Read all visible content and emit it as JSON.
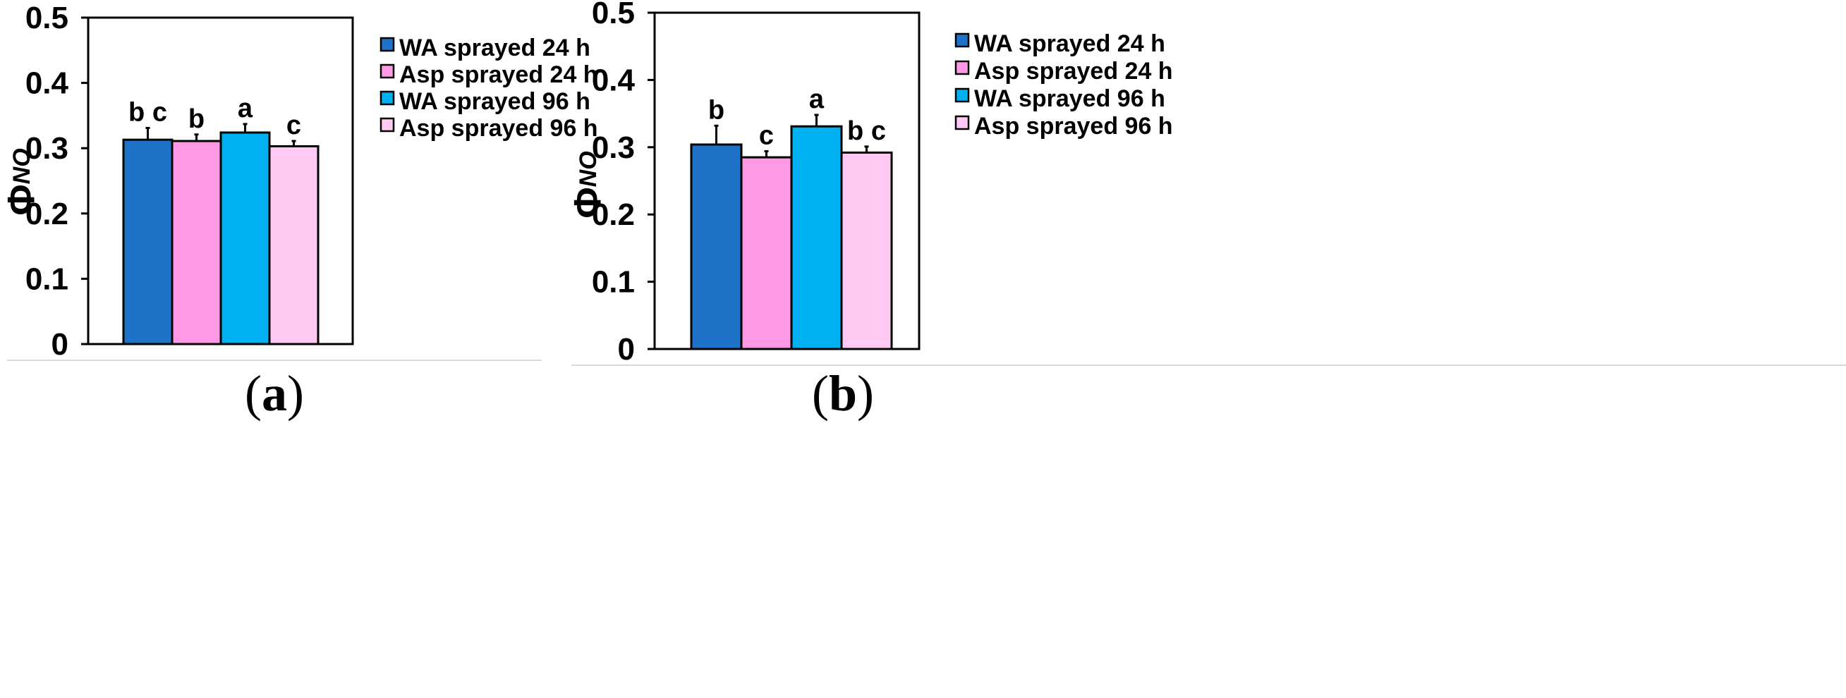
{
  "chart_data": [
    {
      "type": "bar",
      "panel_label": "a",
      "ylabel": "Φ",
      "ylabel_subscript": "NO",
      "ylim": [
        0,
        0.5
      ],
      "yticks": [
        "0",
        "0.1",
        "0.2",
        "0.3",
        "0.4",
        "0.5"
      ],
      "grid": false,
      "legend_position": "right",
      "series": [
        {
          "name": "WA sprayed 24 h",
          "value": 0.313,
          "error": 0.018,
          "letter": "b c",
          "color": "#1E73C8"
        },
        {
          "name": "Asp sprayed 24 h",
          "value": 0.311,
          "error": 0.01,
          "letter": "b",
          "color": "#FF99E6"
        },
        {
          "name": "WA sprayed 96 h",
          "value": 0.324,
          "error": 0.013,
          "letter": "a",
          "color": "#00B0F0"
        },
        {
          "name": "Asp sprayed 96 h",
          "value": 0.303,
          "error": 0.008,
          "letter": "c",
          "color": "#FFC9F3"
        }
      ]
    },
    {
      "type": "bar",
      "panel_label": "b",
      "ylabel": "Φ",
      "ylabel_subscript": "NO",
      "ylim": [
        0,
        0.5
      ],
      "yticks": [
        "0",
        "0.1",
        "0.2",
        "0.3",
        "0.4",
        "0.5"
      ],
      "grid": false,
      "legend_position": "right",
      "series": [
        {
          "name": "WA sprayed 24 h",
          "value": 0.304,
          "error": 0.028,
          "letter": "b",
          "color": "#1E73C8"
        },
        {
          "name": "Asp sprayed 24 h",
          "value": 0.285,
          "error": 0.009,
          "letter": "c",
          "color": "#FF99E6"
        },
        {
          "name": "WA sprayed 96 h",
          "value": 0.331,
          "error": 0.017,
          "letter": "a",
          "color": "#00B0F0"
        },
        {
          "name": "Asp sprayed 96 h",
          "value": 0.292,
          "error": 0.009,
          "letter": "b c",
          "color": "#FFC9F3"
        }
      ]
    }
  ]
}
